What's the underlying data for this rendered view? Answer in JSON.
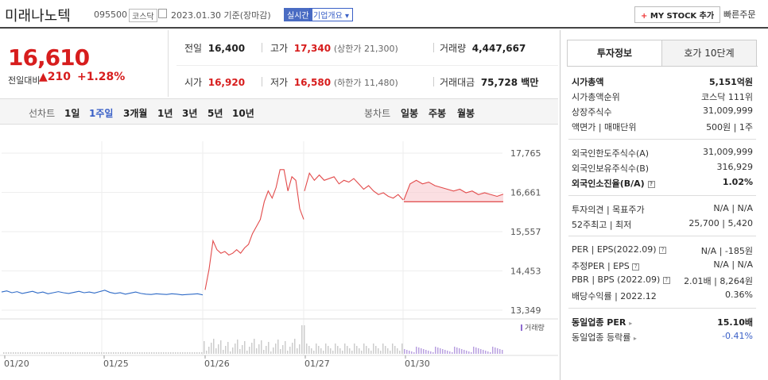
{
  "header": {
    "name": "미래나노텍",
    "code": "095500",
    "market": "코스닥",
    "date": "2023.01.30 기준(장마감)",
    "realtime": "실시간",
    "overview": "기업개요 ▾",
    "mystock": "MY STOCK 추가",
    "quick": "빠른주문"
  },
  "price": {
    "current": "16,610",
    "change_label": "전일대비",
    "change_value": "▲210",
    "change_pct": "+1.28%"
  },
  "stats": {
    "prev_label": "전일",
    "prev": "16,400",
    "high_label": "고가",
    "high": "17,340",
    "upper_limit": "(상한가 21,300)",
    "volume_label": "거래량",
    "volume": "4,447,667",
    "open_label": "시가",
    "open": "16,920",
    "low_label": "저가",
    "low": "16,580",
    "lower_limit": "(하한가 11,480)",
    "amount_label": "거래대금",
    "amount": "75,728 백만"
  },
  "tabs": {
    "line": "선차트",
    "d1": "1일",
    "w1": "1주일",
    "m3": "3개월",
    "y1": "1년",
    "y3": "3년",
    "y5": "5년",
    "y10": "10년",
    "candle": "봉차트",
    "daily": "일봉",
    "weekly": "주봉",
    "monthly": "월봉"
  },
  "chart_data": {
    "type": "line",
    "y_ticks": [
      "17,765",
      "16,661",
      "15,557",
      "14,453",
      "13,349"
    ],
    "ylim": [
      13349,
      17765
    ],
    "x_ticks": [
      "01/20",
      "01/25",
      "01/26",
      "01/27",
      "01/30"
    ],
    "volume_label": "거래량",
    "reference_price": 16400,
    "series": [
      {
        "values": [
          13860,
          13890,
          13840,
          13870,
          13820,
          13850,
          13880,
          13830,
          13860,
          13810,
          13840,
          13870,
          13840,
          13820,
          13850,
          13880,
          13840,
          13860,
          13830,
          13870,
          13910,
          13850,
          13820,
          13840,
          13800,
          13830,
          13860,
          13820,
          13800,
          13790,
          13810,
          13800,
          13790,
          13810,
          13800,
          13780,
          13790,
          13800,
          13810,
          13780
        ]
      },
      {
        "values": [
          13920,
          14500,
          15300,
          15050,
          14950,
          15000,
          14900,
          14950,
          15050,
          14950,
          15100,
          15200,
          15500,
          15700,
          15900,
          16400,
          16700,
          16500,
          16800,
          17300,
          17300,
          16700,
          17100,
          17000,
          16200,
          15900
        ]
      },
      {
        "values": [
          16700,
          17200,
          17000,
          17150,
          17000,
          17050,
          17100,
          16900,
          17000,
          16950,
          17050,
          16900,
          16750,
          16850,
          16700,
          16600,
          16650,
          16550,
          16500,
          16600,
          16450
        ]
      },
      {
        "values": [
          16450,
          16900,
          17000,
          16900,
          16950,
          16850,
          16800,
          16750,
          16700,
          16750,
          16650,
          16700,
          16600,
          16650,
          16600,
          16550,
          16610
        ]
      }
    ]
  },
  "panel": {
    "tab_invest": "투자정보",
    "tab_hoga": "호가 10단계",
    "rows1": [
      {
        "k": "시가총액",
        "v": "5,151억원"
      },
      {
        "k": "시가총액순위",
        "v": "코스닥 111위"
      },
      {
        "k": "상장주식수",
        "v": "31,009,999"
      },
      {
        "k": "액면가 | 매매단위",
        "v": "500원 | 1주"
      }
    ],
    "rows2": [
      {
        "k": "외국인한도주식수(A)",
        "v": "31,009,999"
      },
      {
        "k": "외국인보유주식수(B)",
        "v": "316,929"
      },
      {
        "k": "외국인소진율(B/A)",
        "v": "1.02%"
      }
    ],
    "rows3": [
      {
        "k": "투자의견 | 목표주가",
        "v": "N/A | N/A"
      },
      {
        "k": "52주최고 | 최저",
        "v": "25,700 | 5,420"
      }
    ],
    "rows4": [
      {
        "k": "PER | EPS(2022.09)",
        "v": "N/A | -185원"
      },
      {
        "k": "추정PER | EPS",
        "v": "N/A | N/A"
      },
      {
        "k": "PBR | BPS (2022.09)",
        "v": "2.01배 | 8,264원"
      },
      {
        "k": "배당수익률 | 2022.12",
        "v": "0.36%"
      }
    ],
    "rows5": [
      {
        "k": "동일업종 PER",
        "v": "15.10배"
      },
      {
        "k": "동일업종 등락률",
        "v": "-0.41%"
      }
    ]
  }
}
